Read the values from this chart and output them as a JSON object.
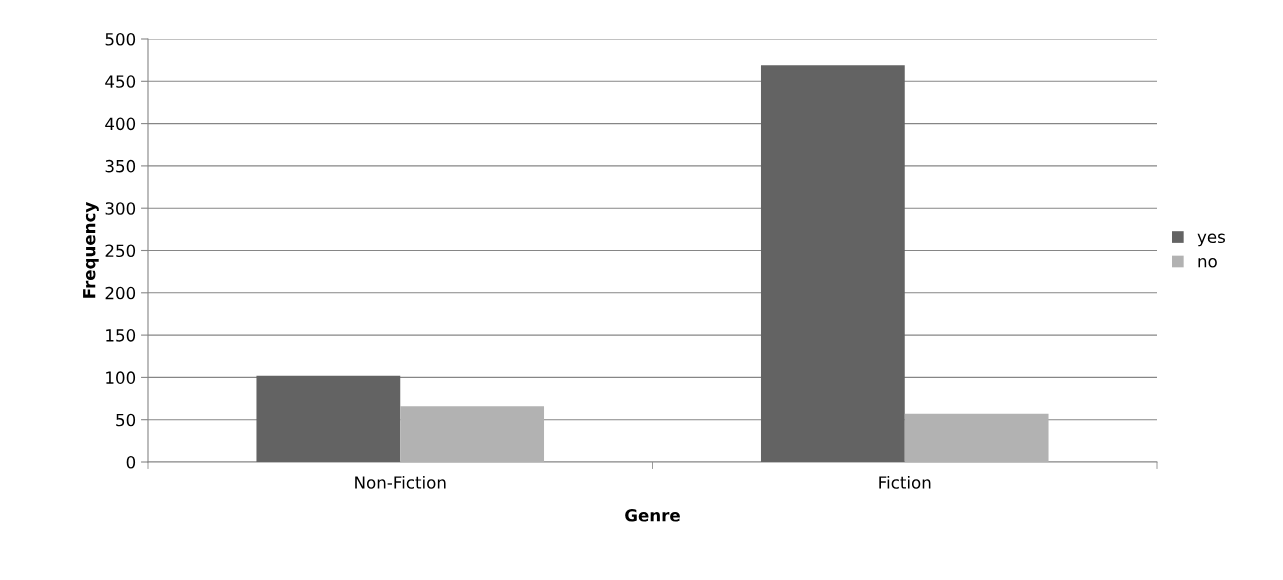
{
  "chart_data": {
    "type": "bar",
    "xlabel": "Genre",
    "ylabel": "Frequency",
    "categories": [
      "Non-Fiction",
      "Fiction"
    ],
    "series": [
      {
        "name": "yes",
        "color": "#636363",
        "values": [
          102,
          469
        ]
      },
      {
        "name": "no",
        "color": "#b2b2b2",
        "values": [
          66,
          57
        ]
      }
    ],
    "ylim": [
      0,
      500
    ],
    "yticks": [
      0,
      50,
      100,
      150,
      200,
      250,
      300,
      350,
      400,
      450,
      500
    ],
    "grid": "y",
    "legend": "right"
  }
}
